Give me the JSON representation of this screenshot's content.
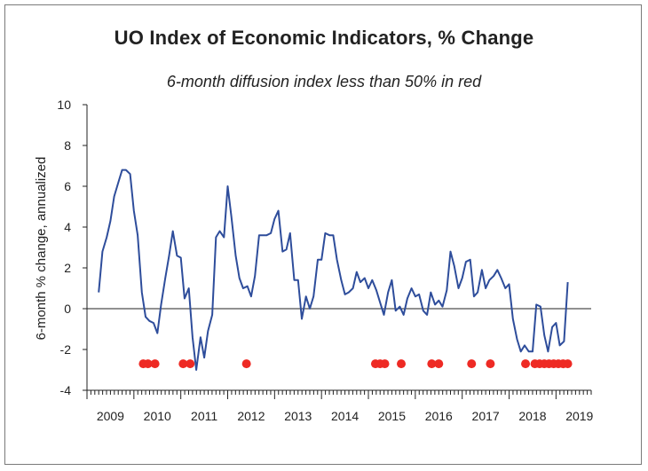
{
  "chart_data": {
    "type": "line",
    "title": "UO Index of Economic Indicators, % Change",
    "subtitle": "6-month diffusion index less than 50% in red",
    "ylabel": "6-month % change, annualized",
    "xlabel": "",
    "ylim": [
      -4,
      10
    ],
    "yticks": [
      10,
      8,
      6,
      4,
      2,
      0,
      -2,
      -4
    ],
    "xlim": [
      2009.0,
      2019.75
    ],
    "xticks": [
      "2009",
      "2010",
      "2011",
      "2012",
      "2013",
      "2014",
      "2015",
      "2016",
      "2017",
      "2018",
      "2019"
    ],
    "series": [
      {
        "color": "#2e4d9b",
        "points": [
          [
            2009.25,
            0.8
          ],
          [
            2009.33,
            2.8
          ],
          [
            2009.42,
            3.5
          ],
          [
            2009.5,
            4.3
          ],
          [
            2009.58,
            5.5
          ],
          [
            2009.67,
            6.2
          ],
          [
            2009.75,
            6.8
          ],
          [
            2009.83,
            6.8
          ],
          [
            2009.92,
            6.6
          ],
          [
            2010.0,
            4.8
          ],
          [
            2010.08,
            3.6
          ],
          [
            2010.17,
            0.8
          ],
          [
            2010.25,
            -0.4
          ],
          [
            2010.33,
            -0.6
          ],
          [
            2010.42,
            -0.7
          ],
          [
            2010.5,
            -1.2
          ],
          [
            2010.58,
            0.2
          ],
          [
            2010.67,
            1.5
          ],
          [
            2010.75,
            2.6
          ],
          [
            2010.83,
            3.8
          ],
          [
            2010.92,
            2.6
          ],
          [
            2011.0,
            2.5
          ],
          [
            2011.08,
            0.5
          ],
          [
            2011.17,
            1.0
          ],
          [
            2011.25,
            -1.4
          ],
          [
            2011.33,
            -3.0
          ],
          [
            2011.42,
            -1.4
          ],
          [
            2011.5,
            -2.4
          ],
          [
            2011.58,
            -1.1
          ],
          [
            2011.67,
            -0.3
          ],
          [
            2011.75,
            3.5
          ],
          [
            2011.83,
            3.8
          ],
          [
            2011.92,
            3.5
          ],
          [
            2012.0,
            6.0
          ],
          [
            2012.08,
            4.5
          ],
          [
            2012.17,
            2.6
          ],
          [
            2012.25,
            1.5
          ],
          [
            2012.33,
            1.0
          ],
          [
            2012.42,
            1.1
          ],
          [
            2012.5,
            0.6
          ],
          [
            2012.58,
            1.6
          ],
          [
            2012.67,
            3.6
          ],
          [
            2012.75,
            3.6
          ],
          [
            2012.83,
            3.6
          ],
          [
            2012.92,
            3.7
          ],
          [
            2013.0,
            4.4
          ],
          [
            2013.08,
            4.8
          ],
          [
            2013.17,
            2.8
          ],
          [
            2013.25,
            2.9
          ],
          [
            2013.33,
            3.7
          ],
          [
            2013.42,
            1.4
          ],
          [
            2013.5,
            1.4
          ],
          [
            2013.58,
            -0.5
          ],
          [
            2013.67,
            0.6
          ],
          [
            2013.75,
            0.0
          ],
          [
            2013.83,
            0.6
          ],
          [
            2013.92,
            2.4
          ],
          [
            2014.0,
            2.4
          ],
          [
            2014.08,
            3.7
          ],
          [
            2014.17,
            3.6
          ],
          [
            2014.25,
            3.6
          ],
          [
            2014.33,
            2.4
          ],
          [
            2014.42,
            1.4
          ],
          [
            2014.5,
            0.7
          ],
          [
            2014.58,
            0.8
          ],
          [
            2014.67,
            1.0
          ],
          [
            2014.75,
            1.8
          ],
          [
            2014.83,
            1.3
          ],
          [
            2014.92,
            1.5
          ],
          [
            2015.0,
            1.0
          ],
          [
            2015.08,
            1.4
          ],
          [
            2015.17,
            0.9
          ],
          [
            2015.25,
            0.3
          ],
          [
            2015.33,
            -0.3
          ],
          [
            2015.42,
            0.8
          ],
          [
            2015.5,
            1.4
          ],
          [
            2015.58,
            -0.1
          ],
          [
            2015.67,
            0.1
          ],
          [
            2015.75,
            -0.3
          ],
          [
            2015.83,
            0.5
          ],
          [
            2015.92,
            1.0
          ],
          [
            2016.0,
            0.6
          ],
          [
            2016.08,
            0.7
          ],
          [
            2016.17,
            -0.1
          ],
          [
            2016.25,
            -0.3
          ],
          [
            2016.33,
            0.8
          ],
          [
            2016.42,
            0.2
          ],
          [
            2016.5,
            0.4
          ],
          [
            2016.58,
            0.1
          ],
          [
            2016.67,
            0.9
          ],
          [
            2016.75,
            2.8
          ],
          [
            2016.83,
            2.1
          ],
          [
            2016.92,
            1.0
          ],
          [
            2017.0,
            1.5
          ],
          [
            2017.08,
            2.3
          ],
          [
            2017.17,
            2.4
          ],
          [
            2017.25,
            0.6
          ],
          [
            2017.33,
            0.8
          ],
          [
            2017.42,
            1.9
          ],
          [
            2017.5,
            1.0
          ],
          [
            2017.58,
            1.4
          ],
          [
            2017.67,
            1.6
          ],
          [
            2017.75,
            1.9
          ],
          [
            2017.83,
            1.5
          ],
          [
            2017.92,
            1.0
          ],
          [
            2018.0,
            1.2
          ],
          [
            2018.08,
            -0.5
          ],
          [
            2018.17,
            -1.5
          ],
          [
            2018.25,
            -2.1
          ],
          [
            2018.33,
            -1.8
          ],
          [
            2018.42,
            -2.1
          ],
          [
            2018.5,
            -2.1
          ],
          [
            2018.58,
            0.2
          ],
          [
            2018.67,
            0.1
          ],
          [
            2018.75,
            -1.3
          ],
          [
            2018.83,
            -2.1
          ],
          [
            2018.92,
            -0.9
          ],
          [
            2019.0,
            -0.7
          ],
          [
            2019.08,
            -1.8
          ],
          [
            2019.17,
            -1.6
          ],
          [
            2019.25,
            1.3
          ]
        ]
      }
    ],
    "red_dots": {
      "color": "#ee2a24",
      "y": -2.7,
      "x": [
        2010.2,
        2010.3,
        2010.45,
        2011.05,
        2011.2,
        2012.4,
        2015.15,
        2015.25,
        2015.35,
        2015.7,
        2016.35,
        2016.5,
        2017.2,
        2017.6,
        2018.35,
        2018.55,
        2018.65,
        2018.75,
        2018.85,
        2018.95,
        2019.05,
        2019.15,
        2019.25
      ]
    }
  }
}
